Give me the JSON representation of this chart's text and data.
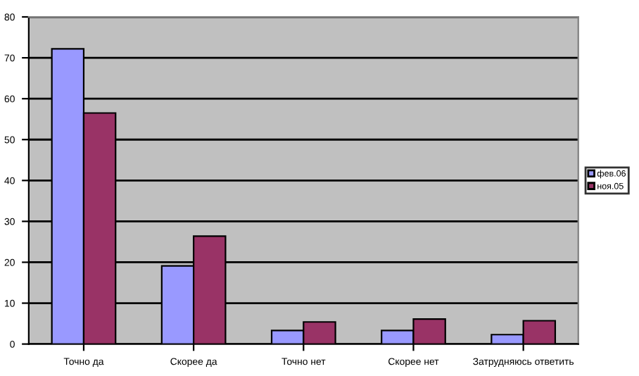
{
  "chart_data": {
    "type": "bar",
    "categories": [
      "Точно да",
      "Скорее да",
      "Точно нет",
      "Скорее нет",
      "Затрудняюсь ответить"
    ],
    "series": [
      {
        "name": "фев.06",
        "color": "#9999ff",
        "values": [
          72.2,
          19.1,
          3.3,
          3.3,
          2.3
        ]
      },
      {
        "name": "ноя.05",
        "color": "#993366",
        "values": [
          56.5,
          26.4,
          5.4,
          6.1,
          5.7
        ]
      }
    ],
    "ylim": [
      0,
      80
    ],
    "yticks": [
      0,
      10,
      20,
      30,
      40,
      50,
      60,
      70,
      80
    ],
    "grid": "y",
    "legend": "right"
  }
}
